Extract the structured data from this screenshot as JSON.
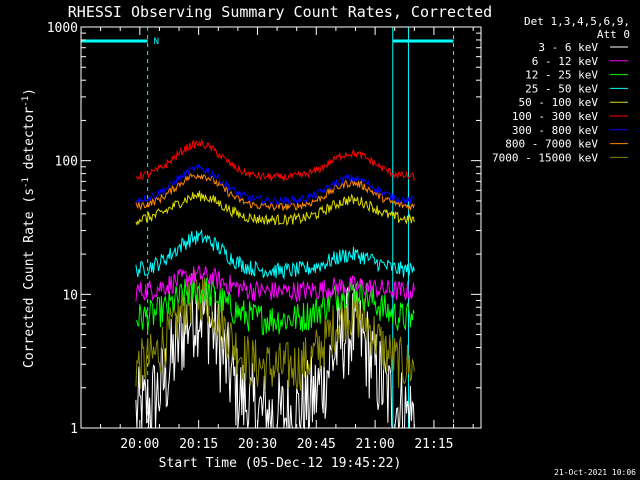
{
  "chart_data": {
    "type": "line",
    "title": "RHESSI Observing Summary Count Rates, Corrected",
    "xlabel": "Start Time (05-Dec-12 19:45:22)",
    "ylabel": "Corrected Count Rate (s",
    "ylabel_sup1": "-1",
    "ylabel_mid": " detector",
    "ylabel_sup2": "-1",
    "ylabel_end": ")",
    "yscale": "log",
    "ylim": [
      1,
      1000
    ],
    "yticks": [
      {
        "value": 1,
        "label": "1"
      },
      {
        "value": 10,
        "label": "10"
      },
      {
        "value": 100,
        "label": "100"
      },
      {
        "value": 1000,
        "label": "1000"
      }
    ],
    "xlim_minutes": [
      0,
      102
    ],
    "xticks": [
      {
        "minute": 15,
        "label": "20:00"
      },
      {
        "minute": 30,
        "label": "20:15"
      },
      {
        "minute": 45,
        "label": "20:30"
      },
      {
        "minute": 60,
        "label": "20:45"
      },
      {
        "minute": 75,
        "label": "21:00"
      },
      {
        "minute": 90,
        "label": "21:15"
      }
    ],
    "legend_header": [
      "Det 1,3,4,5,6,9,",
      "Att 0"
    ],
    "legend_placement": "right",
    "series": [
      {
        "name": "3 - 6 keV",
        "color": "#ffffff"
      },
      {
        "name": "6 - 12 keV",
        "color": "#ff00ff"
      },
      {
        "name": "12 - 25 keV",
        "color": "#00ff00"
      },
      {
        "name": "25 - 50 keV",
        "color": "#00ffff"
      },
      {
        "name": "50 - 100 keV",
        "color": "#dddd00"
      },
      {
        "name": "100 - 300 keV",
        "color": "#ff0000"
      },
      {
        "name": "300 - 800 keV",
        "color": "#0000ff"
      },
      {
        "name": "800 - 7000 keV",
        "color": "#ff8800"
      },
      {
        "name": "7000 - 15000 keV",
        "color": "#888800"
      }
    ],
    "flag_label": "N",
    "footer_date": "21-Oct-2021 10:06"
  }
}
